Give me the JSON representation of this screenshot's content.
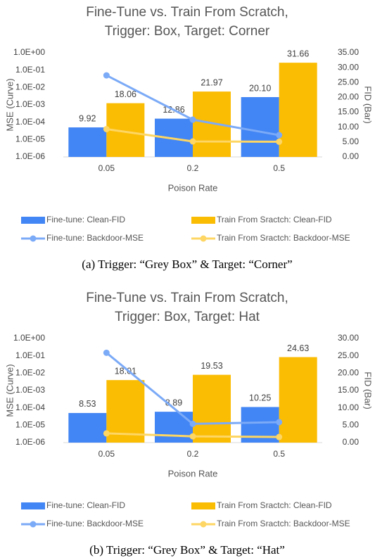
{
  "chart_data": [
    {
      "type": "combo",
      "title": [
        "Fine-Tune vs. Train From Scratch,",
        "Trigger: Box, Target: Corner"
      ],
      "x_label": "Poison Rate",
      "y_label": "MSE (Curve)",
      "y2_label": "FID (Bar)",
      "caption": "(a) Trigger: “Grey Box” & Target: “Corner”",
      "categories": [
        "0.05",
        "0.2",
        "0.5"
      ],
      "ylog": true,
      "ylim": [
        1e-06,
        1
      ],
      "yticks": [
        {
          "value": 1,
          "label": "1.0E+00"
        },
        {
          "value": 0.1,
          "label": "1.0E-01"
        },
        {
          "value": 0.01,
          "label": "1.0E-02"
        },
        {
          "value": 0.001,
          "label": "1.0E-03"
        },
        {
          "value": 0.0001,
          "label": "1.0E-04"
        },
        {
          "value": 1e-05,
          "label": "1.0E-05"
        },
        {
          "value": 1e-06,
          "label": "1.0E-06"
        }
      ],
      "y2lim": [
        0,
        35
      ],
      "y2ticks": [
        {
          "value": 35,
          "label": "35.00"
        },
        {
          "value": 30,
          "label": "30.00"
        },
        {
          "value": 25,
          "label": "25.00"
        },
        {
          "value": 20,
          "label": "20.00"
        },
        {
          "value": 15,
          "label": "15.00"
        },
        {
          "value": 10,
          "label": "10.00"
        },
        {
          "value": 5,
          "label": "5.00"
        },
        {
          "value": 0,
          "label": "0.00"
        }
      ],
      "series": [
        {
          "name": "Fine-tune: Clean-FID",
          "kind": "bar",
          "axis": "y2",
          "color": "#4285f4",
          "values": [
            9.92,
            12.86,
            20.1
          ],
          "value_labels": [
            "9.92",
            "12.86",
            "20.10"
          ]
        },
        {
          "name": "Train From Sractch: Clean-FID",
          "kind": "bar",
          "axis": "y2",
          "color": "#fbbc04",
          "values": [
            18.06,
            21.97,
            31.66
          ],
          "value_labels": [
            "18.06",
            "21.97",
            "31.66"
          ]
        },
        {
          "name": "Fine-tune: Backdoor-MSE",
          "kind": "line",
          "axis": "y",
          "color": "#7baaf7",
          "values": [
            0.05,
            0.00014,
            1.8e-05
          ]
        },
        {
          "name": "Train From Sractch: Backdoor-MSE",
          "kind": "line",
          "axis": "y",
          "color": "#fdd663",
          "values": [
            4e-05,
            7.8e-06,
            7.5e-06
          ]
        }
      ]
    },
    {
      "type": "combo",
      "title": [
        "Fine-Tune vs. Train From Scratch,",
        "Trigger: Box, Target: Hat"
      ],
      "x_label": "Poison Rate",
      "y_label": "MSE (Curve)",
      "y2_label": "FID (Bar)",
      "caption": "(b) Trigger: “Grey Box” & Target: “Hat”",
      "categories": [
        "0.05",
        "0.2",
        "0.5"
      ],
      "ylog": true,
      "ylim": [
        1e-06,
        1
      ],
      "yticks": [
        {
          "value": 1,
          "label": "1.0E+00"
        },
        {
          "value": 0.1,
          "label": "1.0E-01"
        },
        {
          "value": 0.01,
          "label": "1.0E-02"
        },
        {
          "value": 0.001,
          "label": "1.0E-03"
        },
        {
          "value": 0.0001,
          "label": "1.0E-04"
        },
        {
          "value": 1e-05,
          "label": "1.0E-05"
        },
        {
          "value": 1e-06,
          "label": "1.0E-06"
        }
      ],
      "y2lim": [
        0,
        30
      ],
      "y2ticks": [
        {
          "value": 30,
          "label": "30.00"
        },
        {
          "value": 25,
          "label": "25.00"
        },
        {
          "value": 20,
          "label": "20.00"
        },
        {
          "value": 15,
          "label": "15.00"
        },
        {
          "value": 10,
          "label": "10.00"
        },
        {
          "value": 5,
          "label": "5.00"
        },
        {
          "value": 0,
          "label": "0.00"
        }
      ],
      "series": [
        {
          "name": "Fine-tune: Clean-FID",
          "kind": "bar",
          "axis": "y2",
          "color": "#4285f4",
          "values": [
            8.53,
            8.89,
            10.25
          ],
          "value_labels": [
            "8.53",
            "8.89",
            "10.25"
          ]
        },
        {
          "name": "Train From Sractch: Clean-FID",
          "kind": "bar",
          "axis": "y2",
          "color": "#fbbc04",
          "values": [
            18.01,
            19.53,
            24.63
          ],
          "value_labels": [
            "18.01",
            "19.53",
            "24.63"
          ]
        },
        {
          "name": "Fine-tune: Backdoor-MSE",
          "kind": "line",
          "axis": "y",
          "color": "#7baaf7",
          "values": [
            0.15,
            1.2e-05,
            1.5e-05
          ]
        },
        {
          "name": "Train From Sractch: Backdoor-MSE",
          "kind": "line",
          "axis": "y",
          "color": "#fdd663",
          "values": [
            3.4e-06,
            2.3e-06,
            2.1e-06
          ]
        }
      ]
    }
  ]
}
